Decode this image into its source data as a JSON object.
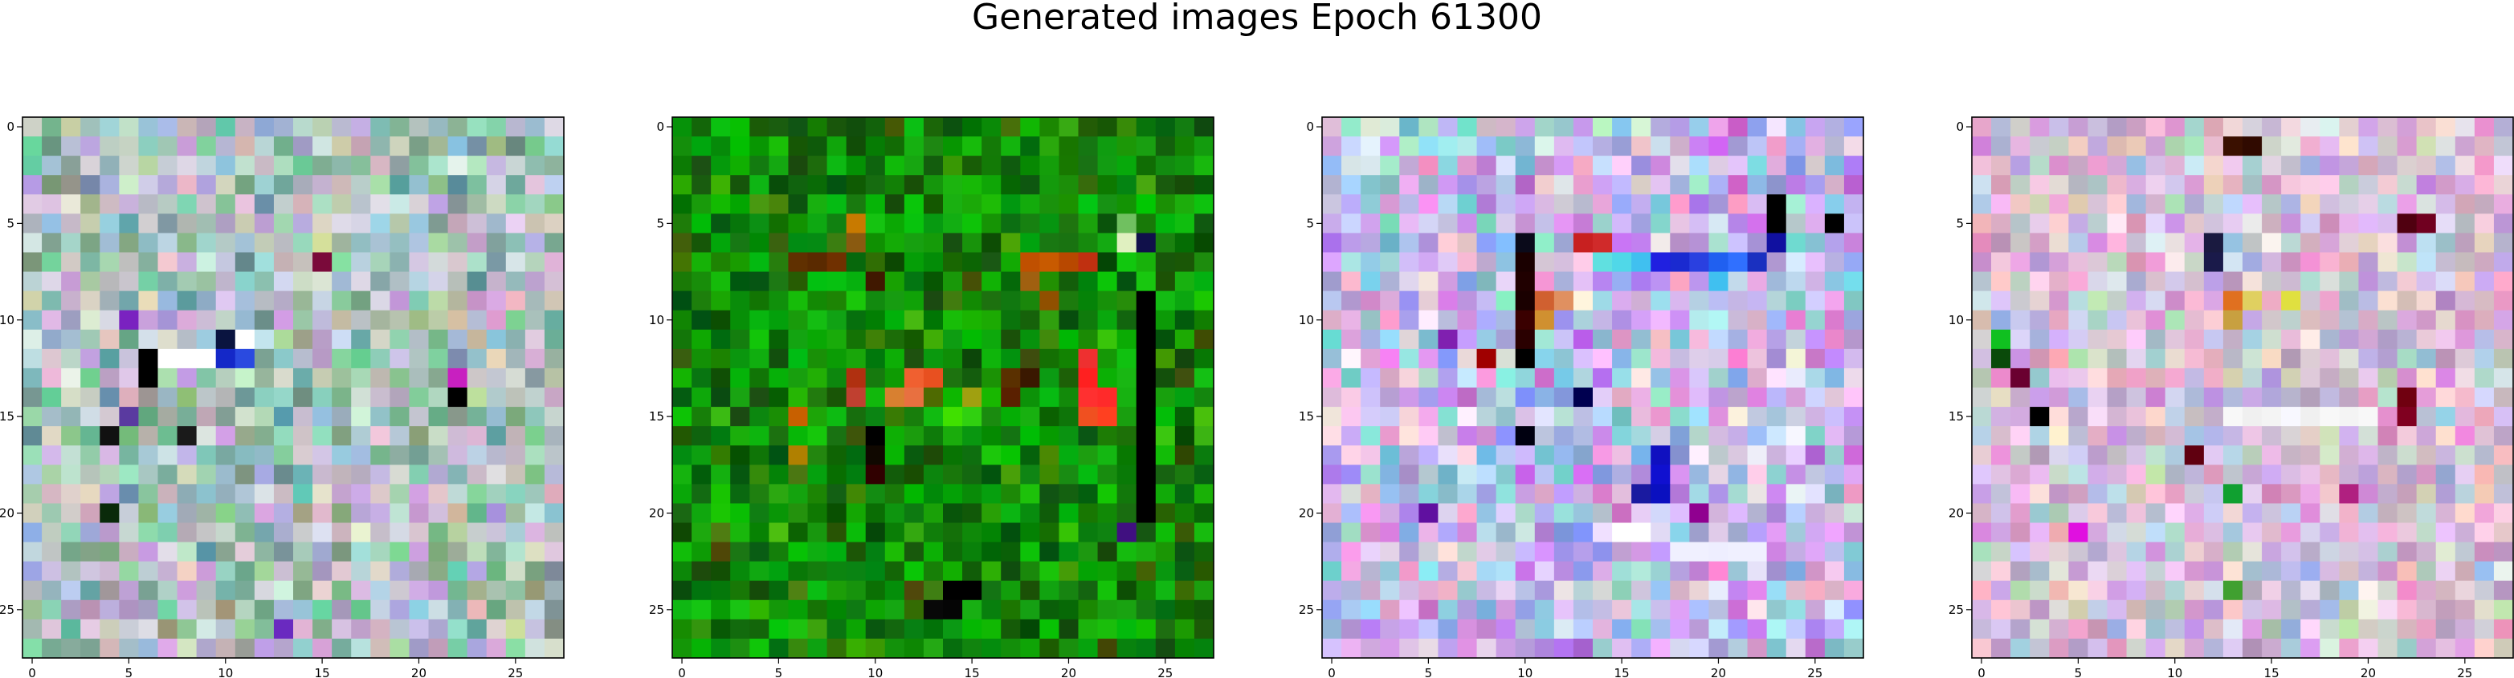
{
  "title": "Generated images Epoch 61300",
  "chart_data": [
    {
      "type": "heatmap",
      "grid_size": [
        28,
        28
      ],
      "xticks": [
        "0",
        "5",
        "10",
        "15",
        "20",
        "25"
      ],
      "yticks": [
        "0",
        "5",
        "10",
        "15",
        "20",
        "25"
      ],
      "style": "pastel-teal",
      "highlights": [
        {
          "r": 12,
          "c": 6,
          "color": "#000000"
        },
        {
          "r": 13,
          "c": 6,
          "color": "#000000"
        },
        {
          "r": 11,
          "c": 10,
          "color": "#0a1440"
        },
        {
          "r": 12,
          "c": 10,
          "color": "#1428c8"
        },
        {
          "r": 12,
          "c": 11,
          "color": "#2a4ae0"
        },
        {
          "r": 12,
          "c": 7,
          "color": "#ffffff"
        },
        {
          "r": 12,
          "c": 8,
          "color": "#ffffff"
        },
        {
          "r": 12,
          "c": 9,
          "color": "#ffffff"
        },
        {
          "r": 11,
          "c": 11,
          "color": "#ffffff"
        },
        {
          "r": 14,
          "c": 22,
          "color": "#000000"
        },
        {
          "r": 16,
          "c": 4,
          "color": "#111111"
        },
        {
          "r": 16,
          "c": 8,
          "color": "#1a1a1a"
        },
        {
          "r": 7,
          "c": 15,
          "color": "#7a0a3a"
        },
        {
          "r": 10,
          "c": 5,
          "color": "#7a22c0"
        },
        {
          "r": 15,
          "c": 5,
          "color": "#5a3aa0"
        },
        {
          "r": 20,
          "c": 4,
          "color": "#0a2a0a"
        },
        {
          "r": 26,
          "c": 13,
          "color": "#6a2ac0"
        },
        {
          "r": 13,
          "c": 22,
          "color": "#c820c0"
        }
      ]
    },
    {
      "type": "heatmap",
      "grid_size": [
        28,
        28
      ],
      "xticks": [
        "0",
        "5",
        "10",
        "15",
        "20",
        "25"
      ],
      "yticks": [
        "0",
        "5",
        "10",
        "15",
        "20",
        "25"
      ],
      "style": "green",
      "highlights": [
        {
          "r": 13,
          "c": 12,
          "color": "#f06030"
        },
        {
          "r": 13,
          "c": 13,
          "color": "#e85020"
        },
        {
          "r": 14,
          "c": 12,
          "color": "#e87040"
        },
        {
          "r": 14,
          "c": 11,
          "color": "#d88030"
        },
        {
          "r": 13,
          "c": 21,
          "color": "#ff2020"
        },
        {
          "r": 14,
          "c": 21,
          "color": "#ff3030"
        },
        {
          "r": 14,
          "c": 22,
          "color": "#ff2a2a"
        },
        {
          "r": 12,
          "c": 21,
          "color": "#ee3030"
        },
        {
          "r": 15,
          "c": 21,
          "color": "#f05020"
        },
        {
          "r": 15,
          "c": 22,
          "color": "#ff4020"
        },
        {
          "r": 7,
          "c": 18,
          "color": "#c05000"
        },
        {
          "r": 7,
          "c": 19,
          "color": "#c85a00"
        },
        {
          "r": 7,
          "c": 20,
          "color": "#b84800"
        },
        {
          "r": 7,
          "c": 21,
          "color": "#c03010"
        },
        {
          "r": 8,
          "c": 18,
          "color": "#a06010"
        },
        {
          "r": 9,
          "c": 19,
          "color": "#905000"
        },
        {
          "r": 5,
          "c": 9,
          "color": "#c87a00"
        },
        {
          "r": 6,
          "c": 9,
          "color": "#8a5a10"
        },
        {
          "r": 7,
          "c": 6,
          "color": "#603000"
        },
        {
          "r": 7,
          "c": 7,
          "color": "#5a2a00"
        },
        {
          "r": 7,
          "c": 8,
          "color": "#703000"
        },
        {
          "r": 8,
          "c": 10,
          "color": "#401800"
        },
        {
          "r": 13,
          "c": 9,
          "color": "#b03010"
        },
        {
          "r": 14,
          "c": 9,
          "color": "#c04030"
        },
        {
          "r": 15,
          "c": 6,
          "color": "#c86000"
        },
        {
          "r": 17,
          "c": 6,
          "color": "#b08000"
        },
        {
          "r": 15,
          "c": 14,
          "color": "#40e000"
        },
        {
          "r": 15,
          "c": 15,
          "color": "#30d010"
        },
        {
          "r": 14,
          "c": 15,
          "color": "#a0a010"
        },
        {
          "r": 13,
          "c": 17,
          "color": "#5a3000"
        },
        {
          "r": 13,
          "c": 18,
          "color": "#3a1800"
        },
        {
          "r": 14,
          "c": 17,
          "color": "#5a2000"
        },
        {
          "r": 16,
          "c": 10,
          "color": "#000000"
        },
        {
          "r": 17,
          "c": 10,
          "color": "#100800"
        },
        {
          "r": 18,
          "c": 10,
          "color": "#300000"
        },
        {
          "r": 24,
          "c": 14,
          "color": "#000000"
        },
        {
          "r": 24,
          "c": 15,
          "color": "#000000"
        },
        {
          "r": 25,
          "c": 13,
          "color": "#080808"
        },
        {
          "r": 25,
          "c": 14,
          "color": "#050505"
        },
        {
          "r": 6,
          "c": 24,
          "color": "#10104a"
        },
        {
          "r": 9,
          "c": 24,
          "color": "#000000"
        },
        {
          "r": 10,
          "c": 24,
          "color": "#000000"
        },
        {
          "r": 11,
          "c": 24,
          "color": "#000000"
        },
        {
          "r": 12,
          "c": 24,
          "color": "#000000"
        },
        {
          "r": 13,
          "c": 24,
          "color": "#000000"
        },
        {
          "r": 14,
          "c": 24,
          "color": "#000000"
        },
        {
          "r": 15,
          "c": 24,
          "color": "#000000"
        },
        {
          "r": 16,
          "c": 24,
          "color": "#000000"
        },
        {
          "r": 17,
          "c": 24,
          "color": "#000000"
        },
        {
          "r": 18,
          "c": 24,
          "color": "#000000"
        },
        {
          "r": 19,
          "c": 24,
          "color": "#000000"
        },
        {
          "r": 20,
          "c": 24,
          "color": "#000000"
        },
        {
          "r": 21,
          "c": 23,
          "color": "#401080"
        },
        {
          "r": 6,
          "c": 23,
          "color": "#e0f0c0"
        },
        {
          "r": 5,
          "c": 23,
          "color": "#70c060"
        }
      ]
    },
    {
      "type": "heatmap",
      "grid_size": [
        28,
        28
      ],
      "xticks": [
        "0",
        "5",
        "10",
        "15",
        "20",
        "25"
      ],
      "yticks": [
        "0",
        "5",
        "10",
        "15",
        "20",
        "25"
      ],
      "style": "pastel-purple",
      "highlights": [
        {
          "r": 6,
          "c": 10,
          "color": "#0a0a1a"
        },
        {
          "r": 7,
          "c": 10,
          "color": "#1a0000"
        },
        {
          "r": 8,
          "c": 10,
          "color": "#200000"
        },
        {
          "r": 9,
          "c": 10,
          "color": "#1a0000"
        },
        {
          "r": 10,
          "c": 10,
          "color": "#3a0000"
        },
        {
          "r": 11,
          "c": 10,
          "color": "#2a0000"
        },
        {
          "r": 12,
          "c": 10,
          "color": "#000000"
        },
        {
          "r": 6,
          "c": 13,
          "color": "#c82020"
        },
        {
          "r": 6,
          "c": 14,
          "color": "#d02a2a"
        },
        {
          "r": 7,
          "c": 14,
          "color": "#60e0e0"
        },
        {
          "r": 7,
          "c": 15,
          "color": "#50d8e8"
        },
        {
          "r": 7,
          "c": 16,
          "color": "#40c0f0"
        },
        {
          "r": 7,
          "c": 17,
          "color": "#2020e0"
        },
        {
          "r": 7,
          "c": 18,
          "color": "#1a2ad0"
        },
        {
          "r": 7,
          "c": 19,
          "color": "#2a40e0"
        },
        {
          "r": 7,
          "c": 20,
          "color": "#2060f0"
        },
        {
          "r": 7,
          "c": 21,
          "color": "#3070ff"
        },
        {
          "r": 7,
          "c": 22,
          "color": "#1a30c0"
        },
        {
          "r": 6,
          "c": 23,
          "color": "#1010a0"
        },
        {
          "r": 4,
          "c": 23,
          "color": "#000000"
        },
        {
          "r": 5,
          "c": 23,
          "color": "#000000"
        },
        {
          "r": 5,
          "c": 26,
          "color": "#000000"
        },
        {
          "r": 9,
          "c": 11,
          "color": "#d06030"
        },
        {
          "r": 9,
          "c": 12,
          "color": "#e09060"
        },
        {
          "r": 10,
          "c": 11,
          "color": "#d09030"
        },
        {
          "r": 14,
          "c": 13,
          "color": "#000050"
        },
        {
          "r": 17,
          "c": 17,
          "color": "#1010c0"
        },
        {
          "r": 18,
          "c": 17,
          "color": "#1010d0"
        },
        {
          "r": 19,
          "c": 16,
          "color": "#1a1aa0"
        },
        {
          "r": 19,
          "c": 17,
          "color": "#0a10c0"
        },
        {
          "r": 16,
          "c": 10,
          "color": "#000010"
        },
        {
          "r": 20,
          "c": 5,
          "color": "#6010a0"
        },
        {
          "r": 20,
          "c": 19,
          "color": "#900090"
        },
        {
          "r": 22,
          "c": 18,
          "color": "#f0f0ff"
        },
        {
          "r": 22,
          "c": 19,
          "color": "#f0f0ff"
        },
        {
          "r": 22,
          "c": 20,
          "color": "#eeeeff"
        },
        {
          "r": 22,
          "c": 21,
          "color": "#f0f0ff"
        },
        {
          "r": 22,
          "c": 22,
          "color": "#f0f0ff"
        },
        {
          "r": 21,
          "c": 14,
          "color": "#f0e0ff"
        },
        {
          "r": 21,
          "c": 15,
          "color": "#ffffff"
        },
        {
          "r": 21,
          "c": 16,
          "color": "#ffffff"
        },
        {
          "r": 8,
          "c": 20,
          "color": "#40c0f0"
        },
        {
          "r": 11,
          "c": 6,
          "color": "#8020b0"
        },
        {
          "r": 12,
          "c": 8,
          "color": "#a00000"
        }
      ]
    },
    {
      "type": "heatmap",
      "grid_size": [
        28,
        28
      ],
      "xticks": [
        "0",
        "5",
        "10",
        "15",
        "20",
        "25"
      ],
      "yticks": [
        "0",
        "5",
        "10",
        "15",
        "20",
        "25"
      ],
      "style": "pastel-pink",
      "highlights": [
        {
          "r": 1,
          "c": 13,
          "color": "#3a1000"
        },
        {
          "r": 1,
          "c": 14,
          "color": "#300a00"
        },
        {
          "r": 6,
          "c": 12,
          "color": "#1a1a40"
        },
        {
          "r": 7,
          "c": 12,
          "color": "#1a1a4a"
        },
        {
          "r": 9,
          "c": 13,
          "color": "#e07020"
        },
        {
          "r": 9,
          "c": 14,
          "color": "#e0d060"
        },
        {
          "r": 9,
          "c": 16,
          "color": "#e0e040"
        },
        {
          "r": 10,
          "c": 13,
          "color": "#c8a040"
        },
        {
          "r": 5,
          "c": 22,
          "color": "#500010"
        },
        {
          "r": 5,
          "c": 23,
          "color": "#700020"
        },
        {
          "r": 11,
          "c": 1,
          "color": "#10c020"
        },
        {
          "r": 12,
          "c": 1,
          "color": "#0a4a0a"
        },
        {
          "r": 13,
          "c": 2,
          "color": "#6a0030"
        },
        {
          "r": 15,
          "c": 3,
          "color": "#000000"
        },
        {
          "r": 14,
          "c": 22,
          "color": "#700010"
        },
        {
          "r": 15,
          "c": 22,
          "color": "#800020"
        },
        {
          "r": 17,
          "c": 11,
          "color": "#600010"
        },
        {
          "r": 19,
          "c": 19,
          "color": "#b02080"
        },
        {
          "r": 15,
          "c": 13,
          "color": "#f8f8f8"
        },
        {
          "r": 15,
          "c": 14,
          "color": "#f0f0f0"
        },
        {
          "r": 15,
          "c": 15,
          "color": "#f4f4f4"
        },
        {
          "r": 15,
          "c": 16,
          "color": "#f8f8ff"
        },
        {
          "r": 15,
          "c": 17,
          "color": "#f0f0f0"
        },
        {
          "r": 15,
          "c": 18,
          "color": "#f8f8f8"
        },
        {
          "r": 15,
          "c": 19,
          "color": "#f4f4f4"
        },
        {
          "r": 15,
          "c": 20,
          "color": "#f8f8f8"
        },
        {
          "r": 19,
          "c": 13,
          "color": "#10a030"
        },
        {
          "r": 21,
          "c": 5,
          "color": "#e010e0"
        },
        {
          "r": 24,
          "c": 13,
          "color": "#40a030"
        }
      ]
    }
  ]
}
